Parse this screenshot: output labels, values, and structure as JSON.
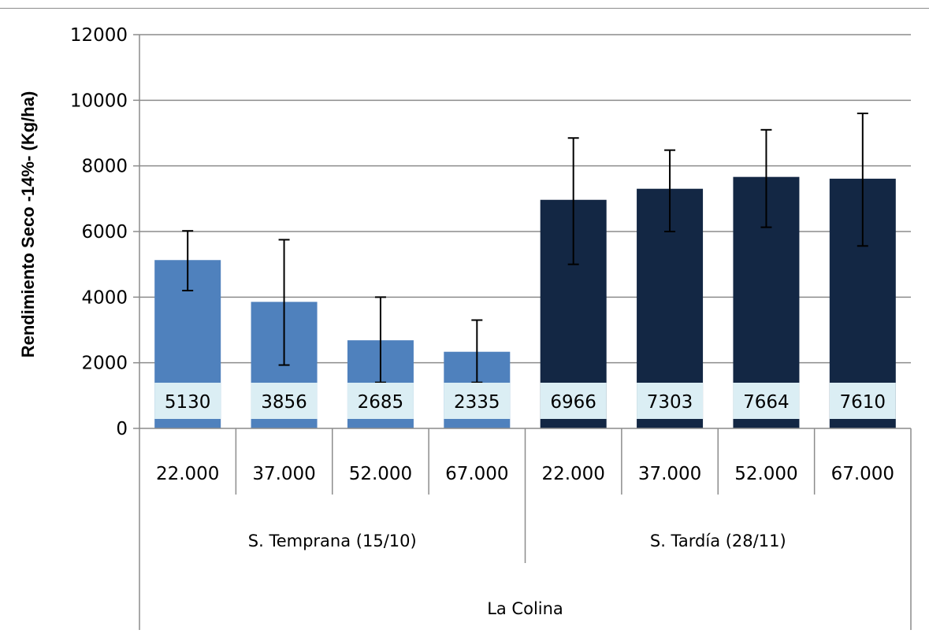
{
  "chart_data": {
    "type": "bar",
    "title": "",
    "ylabel": "Rendimiento Seco -14%- (Kg/ha)",
    "xlabel": "",
    "ylim": [
      0,
      12000
    ],
    "yticks": [
      0,
      2000,
      4000,
      6000,
      8000,
      10000,
      12000
    ],
    "grid": true,
    "legend": "none",
    "categories": [
      "22.000",
      "37.000",
      "52.000",
      "67.000",
      "22.000",
      "37.000",
      "52.000",
      "67.000"
    ],
    "groups": [
      {
        "label": "S. Temprana (15/10)",
        "span": [
          0,
          3
        ]
      },
      {
        "label": "S. Tardía (28/11)",
        "span": [
          4,
          7
        ]
      }
    ],
    "outer_group": "La Colina",
    "values": [
      5130,
      3856,
      2685,
      2335,
      6966,
      7303,
      7664,
      7610
    ],
    "error_low": [
      4200,
      1930,
      1400,
      1400,
      5000,
      6000,
      6130,
      5560
    ],
    "error_high": [
      6020,
      5750,
      4000,
      3300,
      8850,
      8480,
      9100,
      9600
    ],
    "bar_colors": [
      "#4f81bd",
      "#4f81bd",
      "#4f81bd",
      "#4f81bd",
      "#132744",
      "#132744",
      "#132744",
      "#132744"
    ],
    "label_bg_color": "#dbeef4"
  }
}
